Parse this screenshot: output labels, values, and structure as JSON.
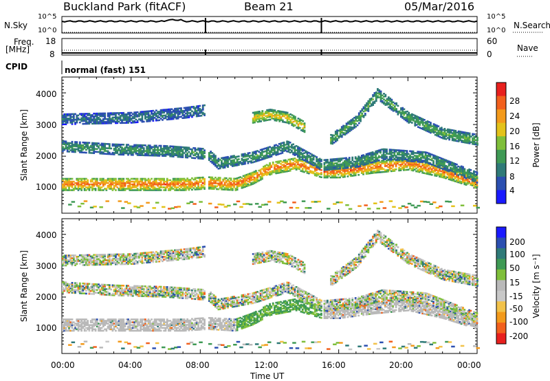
{
  "header": {
    "station": "Buckland Park (fitACF)",
    "beam": "Beam 21",
    "date": "05/Mar/2016"
  },
  "top_panel": {
    "nsky_label": "N.Sky",
    "nsearch_label": "N.Search",
    "y_top": "10^5",
    "y_bottom": "10^0",
    "freq_label": "Freq.",
    "freq_unit": "[MHz]",
    "freq_ticks": [
      "18",
      "8"
    ],
    "nave_label": "Nave",
    "nave_ticks": [
      "60",
      "0"
    ],
    "cpid_label": "CPID",
    "cpid_value": "normal (fast) 151"
  },
  "colors": {
    "power_scale": [
      "#1a1aff",
      "#2b4fb0",
      "#2f7a78",
      "#3f9a55",
      "#7fbf3a",
      "#e3c21a",
      "#f39a1b",
      "#f2601d",
      "#e8201e"
    ],
    "velocity_scale": [
      "#e8201e",
      "#f2601d",
      "#f39a1b",
      "#f2c24a",
      "#c8c8c8",
      "#b9b9b9",
      "#7fbf3a",
      "#3f9a55",
      "#2f7a78",
      "#2b4fb0",
      "#1a1aff"
    ],
    "gray": "#c0c0c0"
  },
  "chart_data": [
    {
      "type": "heatmap",
      "name": "power",
      "ylabel": "Slant Range [km]",
      "yticks": [
        "1000",
        "2000",
        "3000",
        "4000"
      ],
      "ylim": [
        200,
        4500
      ],
      "xlim": [
        0,
        24
      ],
      "colorbar_label": "Power [dB]",
      "colorbar_ticks": [
        "4",
        "8",
        "12",
        "16",
        "20",
        "24",
        "28"
      ],
      "colorbar_range": [
        0,
        32
      ],
      "echo_bands": [
        {
          "t": [
            0,
            7,
            8.4,
            10,
            11,
            12,
            13.5,
            15,
            16,
            18,
            20,
            22,
            24
          ],
          "r": [
            1100,
            1100,
            1150,
            1100,
            1300,
            1600,
            1750,
            1500,
            1500,
            1650,
            1750,
            1500,
            1150
          ],
          "power": 28
        },
        {
          "t": [
            0,
            3,
            6,
            8.4,
            9,
            11,
            13,
            15,
            17,
            18.5,
            21,
            24
          ],
          "r": [
            2300,
            2200,
            2150,
            2050,
            1750,
            1950,
            2300,
            1700,
            1800,
            2050,
            1950,
            1300
          ],
          "power": 12
        },
        {
          "t": [
            0,
            4,
            7,
            8.4
          ],
          "r": [
            3150,
            3200,
            3350,
            3450
          ],
          "power": 8
        },
        {
          "t": [
            11,
            12,
            13,
            14
          ],
          "r": [
            3200,
            3300,
            3200,
            2900
          ],
          "power": 22
        },
        {
          "t": [
            15.5,
            17,
            18.2,
            20,
            22,
            24
          ],
          "r": [
            2500,
            3100,
            3950,
            3200,
            2700,
            2500
          ],
          "power": 14
        }
      ]
    },
    {
      "type": "heatmap",
      "name": "velocity",
      "ylabel": "Slant Range [km]",
      "yticks": [
        "1000",
        "2000",
        "3000",
        "4000"
      ],
      "ylim": [
        200,
        4500
      ],
      "xlim": [
        0,
        24
      ],
      "xlabel": "Time UT",
      "xticks": [
        "00:00",
        "04:00",
        "08:00",
        "12:00",
        "16:00",
        "20:00",
        "00:00"
      ],
      "colorbar_label": "Velocity [m s⁻¹]",
      "colorbar_ticks": [
        "200",
        "100",
        "50",
        "15",
        "-15",
        "-50",
        "-100",
        "-200"
      ],
      "colorbar_range": [
        -250,
        250
      ]
    }
  ]
}
